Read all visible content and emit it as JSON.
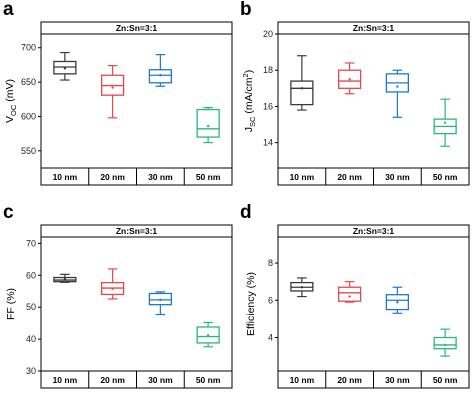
{
  "chart_data": [
    {
      "type": "box",
      "panel_label": "a",
      "strip_title": "Zn:Sn=3:1",
      "ylabel": {
        "main": "V",
        "sub": "OC",
        "tail": " (mV)"
      },
      "ylim": [
        525,
        720
      ],
      "yticks": [
        550,
        600,
        650,
        700
      ],
      "categories": [
        "10 nm",
        "20 nm",
        "30 nm",
        "50 nm"
      ],
      "boxes": [
        {
          "category": "10 nm",
          "min": 653,
          "q1": 662,
          "median": 672,
          "mean": 670,
          "q3": 680,
          "max": 693,
          "color": "#3a3a3a"
        },
        {
          "category": "20 nm",
          "min": 598,
          "q1": 631,
          "median": 645,
          "mean": 642,
          "q3": 660,
          "max": 674,
          "color": "#e8484d"
        },
        {
          "category": "30 nm",
          "min": 644,
          "q1": 649,
          "median": 660,
          "mean": 660,
          "q3": 668,
          "max": 690,
          "color": "#1f78c8"
        },
        {
          "category": "50 nm",
          "min": 562,
          "q1": 570,
          "median": 582,
          "mean": 586,
          "q3": 610,
          "max": 613,
          "color": "#2bb67a"
        }
      ]
    },
    {
      "type": "box",
      "panel_label": "b",
      "strip_title": "Zn:Sn=3:1",
      "ylabel": {
        "main": "J",
        "sub": "SC",
        "tail": " (mA/cm",
        "sup": "2",
        "end": ")"
      },
      "ylim": [
        12.6,
        20.0
      ],
      "yticks": [
        14,
        16,
        18,
        20
      ],
      "categories": [
        "10 nm",
        "20 nm",
        "30 nm",
        "50 nm"
      ],
      "boxes": [
        {
          "category": "10 nm",
          "min": 15.8,
          "q1": 16.1,
          "median": 17.0,
          "mean": 17.0,
          "q3": 17.4,
          "max": 18.8,
          "color": "#3a3a3a"
        },
        {
          "category": "20 nm",
          "min": 16.7,
          "q1": 17.0,
          "median": 17.4,
          "mean": 17.5,
          "q3": 18.0,
          "max": 18.4,
          "color": "#e8484d"
        },
        {
          "category": "30 nm",
          "min": 15.4,
          "q1": 16.8,
          "median": 17.3,
          "mean": 17.1,
          "q3": 17.8,
          "max": 18.0,
          "color": "#1f78c8"
        },
        {
          "category": "50 nm",
          "min": 13.8,
          "q1": 14.5,
          "median": 14.9,
          "mean": 15.1,
          "q3": 15.3,
          "max": 16.4,
          "color": "#2bb67a"
        }
      ]
    },
    {
      "type": "box",
      "panel_label": "c",
      "strip_title": "Zn:Sn=3:1",
      "ylabel": {
        "main": "FF (%)"
      },
      "ylim": [
        30,
        72
      ],
      "yticks": [
        30,
        40,
        50,
        60,
        70
      ],
      "categories": [
        "10 nm",
        "20 nm",
        "30 nm",
        "50 nm"
      ],
      "boxes": [
        {
          "category": "10 nm",
          "min": 57.8,
          "q1": 58.0,
          "median": 58.5,
          "mean": 58.8,
          "q3": 59.3,
          "max": 60.3,
          "color": "#3a3a3a"
        },
        {
          "category": "20 nm",
          "min": 52.6,
          "q1": 54.0,
          "median": 56.0,
          "mean": 55.8,
          "q3": 57.7,
          "max": 62.0,
          "color": "#e8484d"
        },
        {
          "category": "30 nm",
          "min": 47.7,
          "q1": 50.8,
          "median": 52.3,
          "mean": 52.3,
          "q3": 54.3,
          "max": 54.8,
          "color": "#1f78c8"
        },
        {
          "category": "50 nm",
          "min": 37.6,
          "q1": 38.8,
          "median": 40.8,
          "mean": 41.2,
          "q3": 43.8,
          "max": 45.2,
          "color": "#2bb67a"
        }
      ]
    },
    {
      "type": "box",
      "panel_label": "d",
      "strip_title": "Zn:Sn=3:1",
      "ylabel": {
        "main": "Efficiency (%)"
      },
      "ylim": [
        2.2,
        9.4
      ],
      "yticks": [
        4,
        6,
        8
      ],
      "categories": [
        "10 nm",
        "20 nm",
        "30 nm",
        "50 nm"
      ],
      "boxes": [
        {
          "category": "10 nm",
          "min": 6.2,
          "q1": 6.5,
          "median": 6.7,
          "mean": 6.7,
          "q3": 6.95,
          "max": 7.2,
          "color": "#3a3a3a"
        },
        {
          "category": "20 nm",
          "min": 5.9,
          "q1": 5.95,
          "median": 6.4,
          "mean": 6.2,
          "q3": 6.7,
          "max": 7.0,
          "color": "#e8484d"
        },
        {
          "category": "30 nm",
          "min": 5.3,
          "q1": 5.5,
          "median": 6.0,
          "mean": 5.9,
          "q3": 6.3,
          "max": 6.7,
          "color": "#1f78c8"
        },
        {
          "category": "50 nm",
          "min": 3.0,
          "q1": 3.4,
          "median": 3.6,
          "mean": 3.6,
          "q3": 4.0,
          "max": 4.45,
          "color": "#2bb67a"
        }
      ]
    }
  ]
}
